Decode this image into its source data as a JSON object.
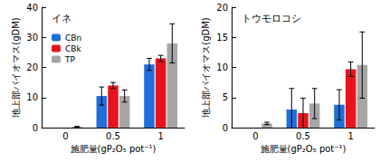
{
  "chart_data": [
    {
      "type": "bar",
      "title": "イネ",
      "categories": [
        "0",
        "0.5",
        "1"
      ],
      "xlabel": "施肥量(gP₂O₅ pot⁻¹)",
      "ylabel": "地上部バイオマス(gDM)",
      "series": [
        {
          "name": "CBn",
          "color": "#1f6fd8",
          "values": [
            null,
            10.5,
            21
          ],
          "errors": [
            null,
            3,
            2
          ]
        },
        {
          "name": "CBk",
          "color": "#e8141c",
          "values": [
            null,
            14,
            23
          ],
          "errors": [
            null,
            1,
            1
          ]
        },
        {
          "name": "TP",
          "color": "#a6a6a6",
          "values": [
            0.3,
            10.5,
            28
          ],
          "errors": [
            0.1,
            2,
            6.5
          ]
        }
      ],
      "ylim": [
        0,
        40
      ],
      "yticks": [
        0,
        10,
        20,
        30,
        40
      ],
      "grid": false,
      "legend": "upper left"
    },
    {
      "type": "bar",
      "title": "トウモロコシ",
      "categories": [
        "0",
        "0.5",
        "1"
      ],
      "xlabel": "施肥量(gP₂O₅ pot⁻¹)",
      "ylabel": "地上部バイオマス(gDM)",
      "series": [
        {
          "name": "CBn",
          "color": "#1f6fd8",
          "values": [
            null,
            3,
            3.8
          ],
          "errors": [
            null,
            3.5,
            2.5
          ]
        },
        {
          "name": "CBk",
          "color": "#e8141c",
          "values": [
            null,
            2.4,
            9.7
          ],
          "errors": [
            null,
            2.5,
            1.2
          ]
        },
        {
          "name": "TP",
          "color": "#a6a6a6",
          "values": [
            0.7,
            4,
            10.4
          ],
          "errors": [
            0.2,
            2.5,
            5.5
          ]
        }
      ],
      "ylim": [
        0,
        20
      ],
      "yticks": [
        0,
        5,
        10,
        15,
        20
      ],
      "grid": false
    }
  ]
}
